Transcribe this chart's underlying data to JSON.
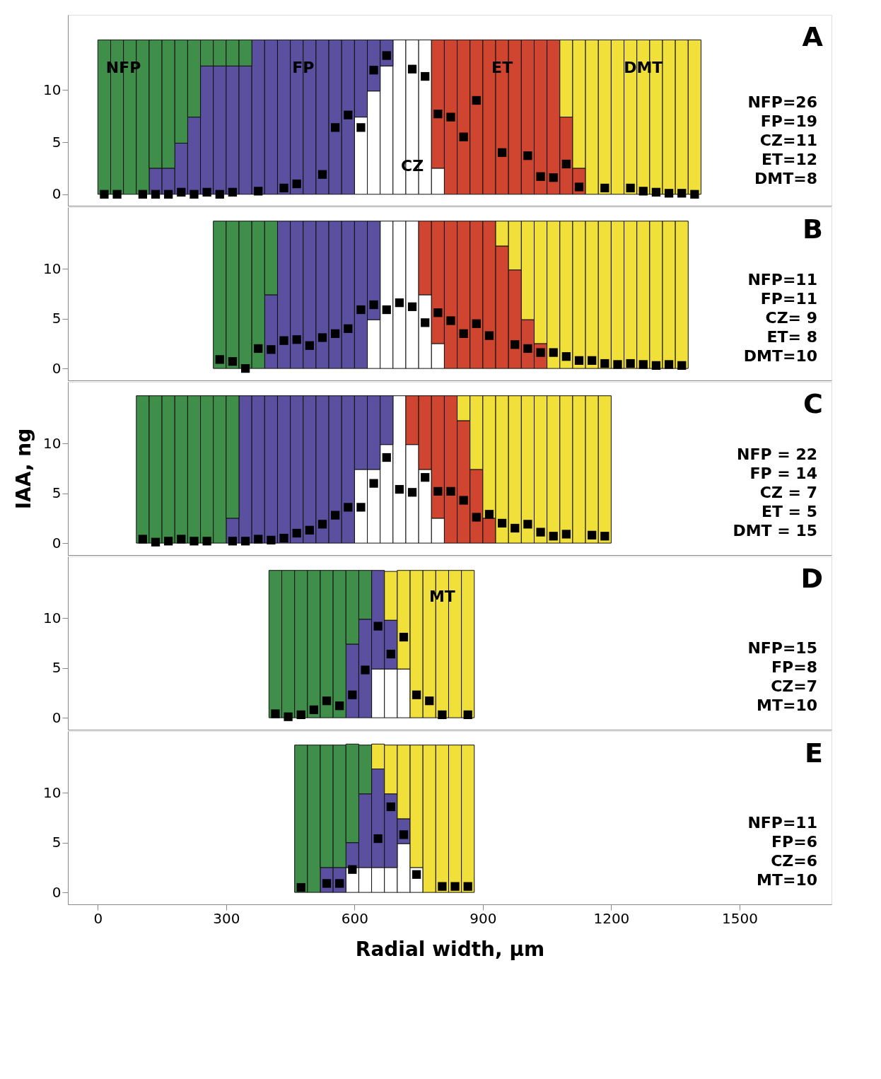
{
  "chart_data": [
    {
      "type": "bar",
      "stacked": true,
      "title": "A",
      "marker": "square",
      "grid": false,
      "tick_labels": "y",
      "xlim": [
        -70,
        1715
      ],
      "xticks": [
        0,
        300,
        600,
        900,
        1200,
        1500
      ],
      "ylim": [
        -1.1,
        17.2
      ],
      "yticks": [
        0,
        5,
        10
      ],
      "x": [
        15,
        45,
        75,
        105,
        135,
        165,
        195,
        225,
        255,
        285,
        315,
        345,
        375,
        405,
        435,
        465,
        495,
        525,
        555,
        585,
        615,
        645,
        675,
        705,
        735,
        765,
        795,
        825,
        855,
        885,
        915,
        945,
        975,
        1005,
        1035,
        1065,
        1095,
        1125,
        1155,
        1185,
        1215,
        1245,
        1275,
        1305,
        1335,
        1365,
        1395
      ],
      "series": [
        {
          "name": "CZ",
          "color": "#ffffff",
          "values": [
            null,
            null,
            null,
            null,
            null,
            null,
            null,
            null,
            null,
            null,
            null,
            null,
            null,
            null,
            null,
            null,
            null,
            null,
            null,
            null,
            7.4,
            9.9,
            12.3,
            14.8,
            14.8,
            14.8,
            2.5,
            null,
            null,
            null,
            null,
            null,
            null,
            null,
            null,
            null,
            null,
            null,
            null,
            null,
            null,
            null,
            null,
            null,
            null,
            null,
            null
          ]
        },
        {
          "name": "ET",
          "color": "#d0452f",
          "values": [
            null,
            null,
            null,
            null,
            null,
            null,
            null,
            null,
            null,
            null,
            null,
            null,
            null,
            null,
            null,
            null,
            null,
            null,
            null,
            null,
            null,
            null,
            null,
            null,
            null,
            null,
            12.3,
            14.8,
            14.8,
            14.8,
            14.8,
            14.8,
            14.8,
            14.8,
            14.8,
            14.8,
            7.4,
            2.5,
            null,
            null,
            null,
            null,
            null,
            null,
            null,
            null,
            null
          ]
        },
        {
          "name": "FP",
          "color": "#5b4fa0",
          "values": [
            null,
            null,
            null,
            null,
            2.5,
            2.5,
            4.9,
            7.4,
            12.3,
            12.3,
            12.3,
            12.3,
            14.8,
            14.8,
            14.8,
            14.8,
            14.8,
            14.8,
            14.8,
            14.8,
            7.4,
            4.9,
            2.5,
            null,
            null,
            null,
            null,
            null,
            null,
            null,
            null,
            null,
            null,
            null,
            null,
            null,
            null,
            null,
            null,
            null,
            null,
            null,
            null,
            null,
            null,
            null,
            null
          ]
        },
        {
          "name": "NFP",
          "color": "#3f8f4a",
          "values": [
            14.8,
            14.8,
            14.8,
            14.8,
            12.3,
            12.3,
            9.9,
            7.4,
            2.5,
            2.5,
            2.5,
            2.5,
            null,
            null,
            null,
            null,
            null,
            null,
            null,
            null,
            null,
            null,
            null,
            null,
            null,
            null,
            null,
            null,
            null,
            null,
            null,
            null,
            null,
            null,
            null,
            null,
            null,
            null,
            null,
            null,
            null,
            null,
            null,
            null,
            null,
            null,
            null
          ]
        },
        {
          "name": "DMT",
          "color": "#f2e03a",
          "values": [
            null,
            null,
            null,
            null,
            null,
            null,
            null,
            null,
            null,
            null,
            null,
            null,
            null,
            null,
            null,
            null,
            null,
            null,
            null,
            null,
            null,
            null,
            null,
            null,
            null,
            null,
            null,
            null,
            null,
            null,
            null,
            null,
            null,
            null,
            null,
            null,
            7.4,
            12.3,
            14.8,
            14.8,
            14.8,
            14.8,
            14.8,
            14.8,
            14.8,
            14.8,
            14.8
          ]
        },
        {
          "type": "scatter",
          "color": "#000000",
          "values": [
            0,
            0,
            null,
            0,
            0,
            0,
            0.2,
            0,
            0.2,
            0,
            0.2,
            null,
            0.3,
            null,
            0.6,
            1.0,
            null,
            1.9,
            6.4,
            7.6,
            6.4,
            11.9,
            13.3,
            null,
            12.0,
            11.3,
            7.7,
            7.4,
            5.5,
            9.0,
            null,
            4.0,
            null,
            3.7,
            1.7,
            1.6,
            2.9,
            0.7,
            null,
            0.6,
            null,
            0.6,
            0.3,
            0.2,
            0.1,
            0.1,
            0
          ]
        }
      ],
      "annotations": [
        "NFP=26",
        "FP=19",
        "CZ=11",
        "ET=12",
        "DMT=8"
      ]
    },
    {
      "type": "bar",
      "stacked": true,
      "title": "B",
      "marker": "square",
      "grid": false,
      "tick_labels": "y",
      "xlim": [
        -70,
        1715
      ],
      "xticks": [
        0,
        300,
        600,
        900,
        1200,
        1500
      ],
      "ylim": [
        -1.2,
        16.2
      ],
      "yticks": [
        0,
        5,
        10
      ],
      "x": [
        285,
        315,
        345,
        375,
        405,
        435,
        465,
        495,
        525,
        555,
        585,
        615,
        645,
        675,
        705,
        735,
        765,
        795,
        825,
        855,
        885,
        915,
        945,
        975,
        1005,
        1035,
        1065,
        1095,
        1125,
        1155,
        1185,
        1215,
        1245,
        1275,
        1305,
        1335,
        1365
      ],
      "series": [
        {
          "color": "#ffffff",
          "values": [
            null,
            null,
            null,
            null,
            null,
            null,
            null,
            null,
            null,
            null,
            null,
            null,
            4.9,
            14.8,
            14.8,
            14.8,
            7.4,
            2.5,
            null,
            null,
            null,
            null,
            null,
            null,
            null,
            null,
            null,
            null,
            null,
            null,
            null,
            null,
            null,
            null,
            null,
            null,
            null
          ]
        },
        {
          "color": "#d0452f",
          "values": [
            null,
            null,
            null,
            null,
            null,
            null,
            null,
            null,
            null,
            null,
            null,
            null,
            null,
            null,
            null,
            null,
            7.4,
            12.3,
            14.8,
            14.8,
            14.8,
            14.8,
            12.3,
            9.9,
            4.9,
            2.5,
            null,
            null,
            null,
            null,
            null,
            null,
            null,
            null,
            null,
            null,
            null
          ]
        },
        {
          "color": "#5b4fa0",
          "values": [
            null,
            null,
            null,
            null,
            7.4,
            14.8,
            14.8,
            14.8,
            14.8,
            14.8,
            14.8,
            14.8,
            9.9,
            null,
            null,
            null,
            null,
            null,
            null,
            null,
            null,
            null,
            null,
            null,
            null,
            null,
            null,
            null,
            null,
            null,
            null,
            null,
            null,
            null,
            null,
            null,
            null
          ]
        },
        {
          "color": "#3f8f4a",
          "values": [
            14.8,
            14.8,
            14.8,
            14.8,
            7.4,
            null,
            null,
            null,
            null,
            null,
            null,
            null,
            null,
            null,
            null,
            null,
            null,
            null,
            null,
            null,
            null,
            null,
            null,
            null,
            null,
            null,
            null,
            null,
            null,
            null,
            null,
            null,
            null,
            null,
            null,
            null,
            null
          ]
        },
        {
          "color": "#f2e03a",
          "values": [
            null,
            null,
            null,
            null,
            null,
            null,
            null,
            null,
            null,
            null,
            null,
            null,
            null,
            null,
            null,
            null,
            null,
            null,
            null,
            null,
            null,
            null,
            2.5,
            4.9,
            9.9,
            12.3,
            14.8,
            14.8,
            14.8,
            14.8,
            14.8,
            14.8,
            14.8,
            14.8,
            14.8,
            14.8,
            14.8
          ]
        },
        {
          "type": "scatter",
          "color": "#000000",
          "values": [
            0.9,
            0.7,
            0,
            2.0,
            1.9,
            2.8,
            2.9,
            2.3,
            3.1,
            3.5,
            4.0,
            5.9,
            6.4,
            5.9,
            6.6,
            6.2,
            4.6,
            5.6,
            4.8,
            3.5,
            4.5,
            3.3,
            null,
            2.4,
            2.0,
            1.6,
            1.6,
            1.2,
            0.8,
            0.8,
            0.5,
            0.4,
            0.5,
            0.4,
            0.3,
            0.4,
            0.3
          ]
        }
      ],
      "annotations": [
        "NFP=11",
        "FP=11",
        "CZ= 9",
        "ET= 8",
        "DMT=10"
      ]
    },
    {
      "type": "bar",
      "stacked": true,
      "title": "C",
      "marker": "square",
      "grid": false,
      "tick_labels": "y",
      "ylabel": "IAA, ng",
      "xlim": [
        -70,
        1715
      ],
      "xticks": [
        0,
        300,
        600,
        900,
        1200,
        1500
      ],
      "ylim": [
        -1.2,
        16.2
      ],
      "yticks": [
        0,
        5,
        10
      ],
      "x": [
        105,
        135,
        165,
        195,
        225,
        255,
        285,
        315,
        345,
        375,
        405,
        435,
        465,
        495,
        525,
        555,
        585,
        615,
        645,
        675,
        705,
        735,
        765,
        795,
        825,
        855,
        885,
        915,
        945,
        975,
        1005,
        1035,
        1065,
        1095,
        1125,
        1155,
        1185
      ],
      "series": [
        {
          "color": "#ffffff",
          "values": [
            null,
            null,
            null,
            null,
            null,
            null,
            null,
            null,
            null,
            null,
            null,
            null,
            null,
            null,
            null,
            null,
            null,
            7.4,
            7.4,
            9.9,
            14.8,
            9.9,
            7.4,
            2.5,
            null,
            null,
            null,
            null,
            null,
            null,
            null,
            null,
            null,
            null,
            null,
            null,
            null
          ]
        },
        {
          "color": "#d0452f",
          "values": [
            null,
            null,
            null,
            null,
            null,
            null,
            null,
            null,
            null,
            null,
            null,
            null,
            null,
            null,
            null,
            null,
            null,
            null,
            null,
            null,
            null,
            4.9,
            7.4,
            12.3,
            14.8,
            12.3,
            7.4,
            2.5,
            null,
            null,
            null,
            null,
            null,
            null,
            null,
            null,
            null
          ]
        },
        {
          "color": "#5b4fa0",
          "values": [
            null,
            null,
            null,
            null,
            null,
            null,
            null,
            2.5,
            14.8,
            14.8,
            14.8,
            14.8,
            14.8,
            14.8,
            14.8,
            14.8,
            14.8,
            7.4,
            7.4,
            4.9,
            null,
            null,
            null,
            null,
            null,
            null,
            null,
            null,
            null,
            null,
            null,
            null,
            null,
            null,
            null,
            null,
            null
          ]
        },
        {
          "color": "#3f8f4a",
          "values": [
            14.8,
            14.8,
            14.8,
            14.8,
            14.8,
            14.8,
            14.8,
            12.3,
            null,
            null,
            null,
            null,
            null,
            null,
            null,
            null,
            null,
            null,
            null,
            null,
            null,
            null,
            null,
            null,
            null,
            null,
            null,
            null,
            null,
            null,
            null,
            null,
            null,
            null,
            null,
            null,
            null
          ]
        },
        {
          "color": "#f2e03a",
          "values": [
            null,
            null,
            null,
            null,
            null,
            null,
            null,
            null,
            null,
            null,
            null,
            null,
            null,
            null,
            null,
            null,
            null,
            null,
            null,
            null,
            null,
            null,
            null,
            null,
            null,
            2.5,
            7.4,
            12.3,
            14.8,
            14.8,
            14.8,
            14.8,
            14.8,
            14.8,
            14.8,
            14.8,
            14.8
          ]
        },
        {
          "type": "scatter",
          "color": "#000000",
          "values": [
            0.4,
            0.1,
            0.2,
            0.4,
            0.2,
            0.2,
            null,
            0.2,
            0.2,
            0.4,
            0.3,
            0.5,
            1.0,
            1.3,
            1.9,
            2.8,
            3.6,
            3.6,
            6.0,
            8.6,
            5.4,
            5.1,
            6.6,
            5.2,
            5.2,
            4.3,
            2.6,
            2.9,
            2.0,
            1.5,
            1.9,
            1.1,
            0.7,
            0.9,
            null,
            0.8,
            0.7
          ]
        }
      ],
      "annotations": [
        "NFP = 22",
        "FP = 14",
        "CZ =  7",
        "ET =  5",
        "DMT = 15"
      ]
    },
    {
      "type": "bar",
      "stacked": true,
      "title": "D",
      "marker": "square",
      "grid": false,
      "tick_labels": "y",
      "xlim": [
        -70,
        1715
      ],
      "xticks": [
        0,
        300,
        600,
        900,
        1200,
        1500
      ],
      "ylim": [
        -1.2,
        16.2
      ],
      "yticks": [
        0,
        5,
        10
      ],
      "x": [
        415,
        445,
        475,
        505,
        535,
        565,
        595,
        625,
        655,
        685,
        715,
        745,
        775,
        805,
        835,
        865
      ],
      "series": [
        {
          "color": "#ffffff",
          "values": [
            null,
            null,
            null,
            null,
            null,
            null,
            null,
            null,
            4.9,
            4.9,
            4.9,
            null,
            null,
            null,
            null,
            null
          ]
        },
        {
          "color": "#5b4fa0",
          "values": [
            null,
            null,
            null,
            null,
            null,
            null,
            7.4,
            9.9,
            9.9,
            4.9,
            null,
            null,
            null,
            null,
            null,
            null
          ]
        },
        {
          "color": "#3f8f4a",
          "values": [
            14.8,
            14.8,
            14.8,
            14.8,
            14.8,
            14.8,
            7.4,
            4.9,
            null,
            null,
            null,
            null,
            null,
            null,
            null,
            null
          ]
        },
        {
          "name": "MT",
          "color": "#f2e03a",
          "values": [
            null,
            null,
            null,
            null,
            null,
            null,
            null,
            null,
            null,
            4.9,
            9.9,
            14.8,
            14.8,
            14.8,
            14.8,
            14.8
          ]
        },
        {
          "type": "scatter",
          "color": "#000000",
          "values": [
            0.4,
            0.1,
            0.3,
            0.8,
            1.7,
            1.2,
            2.3,
            4.8,
            9.2,
            6.4,
            8.1,
            2.3,
            1.7,
            0.3,
            null,
            0.3
          ]
        }
      ],
      "annotations": [
        "NFP=15",
        "FP=8",
        "CZ=7",
        "MT=10"
      ]
    },
    {
      "type": "bar",
      "stacked": true,
      "title": "E",
      "marker": "square",
      "grid": false,
      "xlabel": "Radial width, μm",
      "xlim": [
        -70,
        1715
      ],
      "xticks": [
        0,
        300,
        600,
        900,
        1200,
        1500
      ],
      "ylim": [
        -1.2,
        16.2
      ],
      "yticks": [
        0,
        5,
        10
      ],
      "x": [
        475,
        505,
        535,
        565,
        595,
        625,
        655,
        685,
        715,
        745,
        775,
        805,
        835,
        865
      ],
      "series": [
        {
          "color": "#ffffff",
          "values": [
            null,
            null,
            null,
            null,
            2.5,
            2.5,
            2.5,
            2.5,
            4.9,
            2.5,
            null,
            null,
            null,
            null
          ]
        },
        {
          "color": "#5b4fa0",
          "values": [
            null,
            null,
            2.5,
            2.5,
            2.5,
            7.4,
            9.9,
            7.4,
            2.5,
            null,
            null,
            null,
            null,
            null
          ]
        },
        {
          "color": "#3f8f4a",
          "values": [
            14.8,
            14.8,
            12.3,
            12.3,
            9.9,
            4.9,
            null,
            null,
            null,
            null,
            null,
            null,
            null,
            null
          ]
        },
        {
          "color": "#f2e03a",
          "values": [
            null,
            null,
            null,
            null,
            null,
            null,
            2.5,
            4.9,
            7.4,
            12.3,
            14.8,
            14.8,
            14.8,
            14.8
          ]
        },
        {
          "type": "scatter",
          "color": "#000000",
          "values": [
            0.5,
            null,
            0.9,
            0.9,
            2.3,
            null,
            5.4,
            8.6,
            5.8,
            1.8,
            null,
            0.6,
            0.6,
            0.6
          ]
        }
      ],
      "annotations": [
        "NFP=11",
        "FP=6",
        "CZ=6",
        "MT=10"
      ]
    }
  ]
}
